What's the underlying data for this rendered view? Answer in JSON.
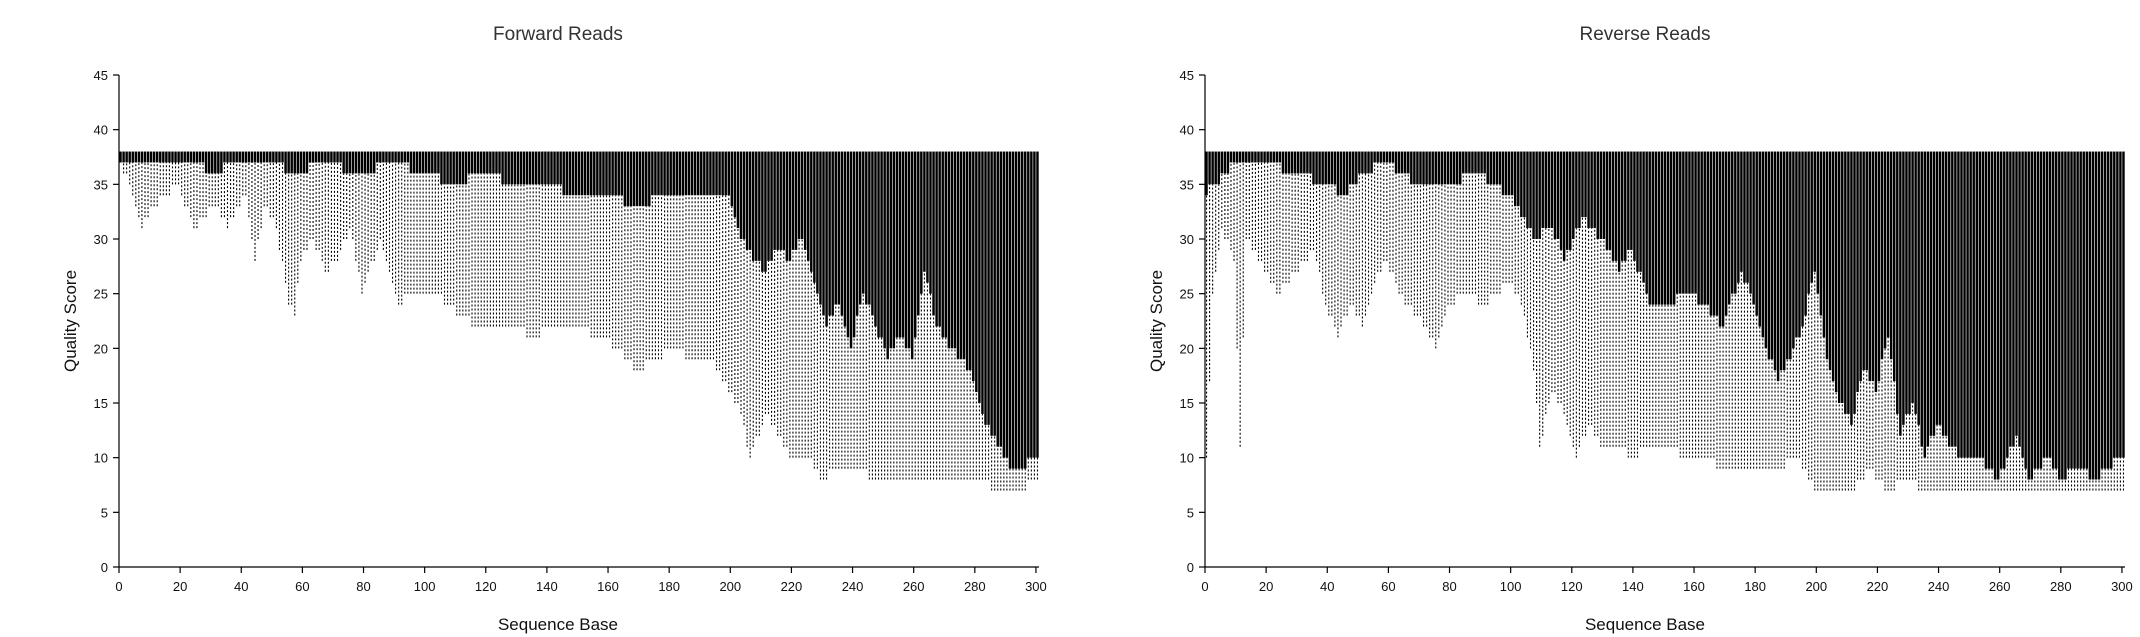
{
  "chart_data": [
    {
      "type": "box",
      "title": "Forward Reads",
      "xlabel": "Sequence Base",
      "ylabel": "Quality Score",
      "xlim": [
        0,
        301
      ],
      "ylim": [
        0,
        45
      ],
      "xticks": [
        0,
        20,
        40,
        60,
        80,
        100,
        120,
        140,
        160,
        180,
        200,
        220,
        240,
        260,
        280,
        300
      ],
      "yticks": [
        0,
        5,
        10,
        15,
        20,
        25,
        30,
        35,
        40,
        45
      ],
      "grid": false,
      "positions": [
        1,
        301
      ],
      "whisker_low_profile": [
        [
          0,
          37
        ],
        [
          4,
          35
        ],
        [
          8,
          31
        ],
        [
          12,
          33
        ],
        [
          20,
          35
        ],
        [
          25,
          31
        ],
        [
          28,
          32
        ],
        [
          32,
          33
        ],
        [
          36,
          31
        ],
        [
          42,
          34
        ],
        [
          45,
          28
        ],
        [
          48,
          33
        ],
        [
          52,
          31
        ],
        [
          56,
          24
        ],
        [
          58,
          23
        ],
        [
          60,
          28
        ],
        [
          64,
          30
        ],
        [
          68,
          27
        ],
        [
          72,
          28
        ],
        [
          76,
          31
        ],
        [
          80,
          25
        ],
        [
          86,
          30
        ],
        [
          92,
          24
        ],
        [
          96,
          25
        ],
        [
          104,
          25
        ],
        [
          112,
          23
        ],
        [
          118,
          22
        ],
        [
          124,
          22
        ],
        [
          130,
          22
        ],
        [
          136,
          21
        ],
        [
          142,
          22
        ],
        [
          150,
          22
        ],
        [
          158,
          21
        ],
        [
          164,
          20
        ],
        [
          170,
          18
        ],
        [
          176,
          19
        ],
        [
          182,
          20
        ],
        [
          188,
          19
        ],
        [
          194,
          19
        ],
        [
          200,
          16
        ],
        [
          204,
          14
        ],
        [
          207,
          10
        ],
        [
          212,
          14
        ],
        [
          216,
          12
        ],
        [
          220,
          10
        ],
        [
          226,
          10
        ],
        [
          230,
          8
        ],
        [
          236,
          9
        ],
        [
          240,
          9
        ],
        [
          250,
          8
        ],
        [
          260,
          8
        ],
        [
          270,
          8
        ],
        [
          280,
          8
        ],
        [
          290,
          7
        ],
        [
          296,
          7
        ],
        [
          300,
          8
        ]
      ],
      "q1_profile": [
        [
          0,
          37
        ],
        [
          10,
          37
        ],
        [
          18,
          37
        ],
        [
          26,
          37
        ],
        [
          30,
          36
        ],
        [
          40,
          37
        ],
        [
          52,
          37
        ],
        [
          56,
          36
        ],
        [
          60,
          36
        ],
        [
          66,
          37
        ],
        [
          80,
          36
        ],
        [
          90,
          37
        ],
        [
          100,
          36
        ],
        [
          110,
          35
        ],
        [
          120,
          36
        ],
        [
          130,
          35
        ],
        [
          140,
          35
        ],
        [
          150,
          34
        ],
        [
          160,
          34
        ],
        [
          170,
          33
        ],
        [
          180,
          34
        ],
        [
          190,
          34
        ],
        [
          200,
          34
        ],
        [
          204,
          30
        ],
        [
          208,
          28
        ],
        [
          212,
          27
        ],
        [
          216,
          29
        ],
        [
          220,
          28
        ],
        [
          224,
          30
        ],
        [
          228,
          26
        ],
        [
          232,
          22
        ],
        [
          236,
          24
        ],
        [
          240,
          20
        ],
        [
          244,
          25
        ],
        [
          248,
          22
        ],
        [
          252,
          19
        ],
        [
          256,
          21
        ],
        [
          260,
          19
        ],
        [
          264,
          27
        ],
        [
          268,
          22
        ],
        [
          272,
          20
        ],
        [
          276,
          19
        ],
        [
          280,
          17
        ],
        [
          284,
          13
        ],
        [
          288,
          11
        ],
        [
          292,
          9
        ],
        [
          296,
          9
        ],
        [
          300,
          10
        ]
      ],
      "q3": 38,
      "whisker_high": 38
    },
    {
      "type": "box",
      "title": "Reverse Reads",
      "xlabel": "Sequence Base",
      "ylabel": "Quality Score",
      "xlim": [
        0,
        301
      ],
      "ylim": [
        0,
        45
      ],
      "xticks": [
        0,
        20,
        40,
        60,
        80,
        100,
        120,
        140,
        160,
        180,
        200,
        220,
        240,
        260,
        280,
        300
      ],
      "yticks": [
        0,
        5,
        10,
        15,
        20,
        25,
        30,
        35,
        40,
        45
      ],
      "grid": false,
      "positions": [
        1,
        301
      ],
      "whisker_low_profile": [
        [
          0,
          2
        ],
        [
          3,
          25
        ],
        [
          6,
          31
        ],
        [
          10,
          28
        ],
        [
          12,
          11
        ],
        [
          14,
          30
        ],
        [
          20,
          27
        ],
        [
          24,
          25
        ],
        [
          30,
          27
        ],
        [
          36,
          29
        ],
        [
          40,
          24
        ],
        [
          44,
          21
        ],
        [
          48,
          24
        ],
        [
          52,
          22
        ],
        [
          56,
          26
        ],
        [
          60,
          28
        ],
        [
          66,
          24
        ],
        [
          70,
          23
        ],
        [
          76,
          20
        ],
        [
          80,
          24
        ],
        [
          86,
          25
        ],
        [
          92,
          24
        ],
        [
          100,
          26
        ],
        [
          104,
          24
        ],
        [
          108,
          18
        ],
        [
          110,
          11
        ],
        [
          114,
          16
        ],
        [
          118,
          14
        ],
        [
          122,
          10
        ],
        [
          126,
          13
        ],
        [
          130,
          11
        ],
        [
          136,
          11
        ],
        [
          140,
          10
        ],
        [
          146,
          11
        ],
        [
          152,
          11
        ],
        [
          158,
          10
        ],
        [
          164,
          10
        ],
        [
          170,
          9
        ],
        [
          176,
          9
        ],
        [
          182,
          9
        ],
        [
          188,
          9
        ],
        [
          194,
          10
        ],
        [
          200,
          7
        ],
        [
          206,
          7
        ],
        [
          212,
          7
        ],
        [
          218,
          9
        ],
        [
          224,
          7
        ],
        [
          230,
          8
        ],
        [
          236,
          7
        ],
        [
          242,
          7
        ],
        [
          250,
          7
        ],
        [
          260,
          7
        ],
        [
          270,
          7
        ],
        [
          280,
          7
        ],
        [
          290,
          7
        ],
        [
          296,
          7
        ],
        [
          300,
          7
        ]
      ],
      "q1_profile": [
        [
          0,
          34
        ],
        [
          4,
          35
        ],
        [
          10,
          37
        ],
        [
          20,
          37
        ],
        [
          30,
          36
        ],
        [
          40,
          35
        ],
        [
          46,
          34
        ],
        [
          52,
          36
        ],
        [
          60,
          37
        ],
        [
          70,
          35
        ],
        [
          80,
          35
        ],
        [
          90,
          36
        ],
        [
          100,
          34
        ],
        [
          104,
          32
        ],
        [
          108,
          30
        ],
        [
          114,
          31
        ],
        [
          118,
          28
        ],
        [
          124,
          32
        ],
        [
          130,
          30
        ],
        [
          136,
          27
        ],
        [
          140,
          29
        ],
        [
          146,
          24
        ],
        [
          152,
          24
        ],
        [
          158,
          25
        ],
        [
          164,
          24
        ],
        [
          170,
          22
        ],
        [
          176,
          27
        ],
        [
          180,
          24
        ],
        [
          184,
          20
        ],
        [
          188,
          17
        ],
        [
          192,
          19
        ],
        [
          196,
          22
        ],
        [
          200,
          27
        ],
        [
          204,
          19
        ],
        [
          208,
          15
        ],
        [
          212,
          13
        ],
        [
          216,
          18
        ],
        [
          220,
          16
        ],
        [
          224,
          21
        ],
        [
          228,
          12
        ],
        [
          232,
          15
        ],
        [
          236,
          10
        ],
        [
          240,
          13
        ],
        [
          244,
          11
        ],
        [
          248,
          10
        ],
        [
          254,
          10
        ],
        [
          260,
          8
        ],
        [
          266,
          12
        ],
        [
          270,
          8
        ],
        [
          276,
          10
        ],
        [
          280,
          8
        ],
        [
          286,
          9
        ],
        [
          292,
          8
        ],
        [
          300,
          10
        ]
      ],
      "q3": 38,
      "whisker_high": 38
    }
  ]
}
